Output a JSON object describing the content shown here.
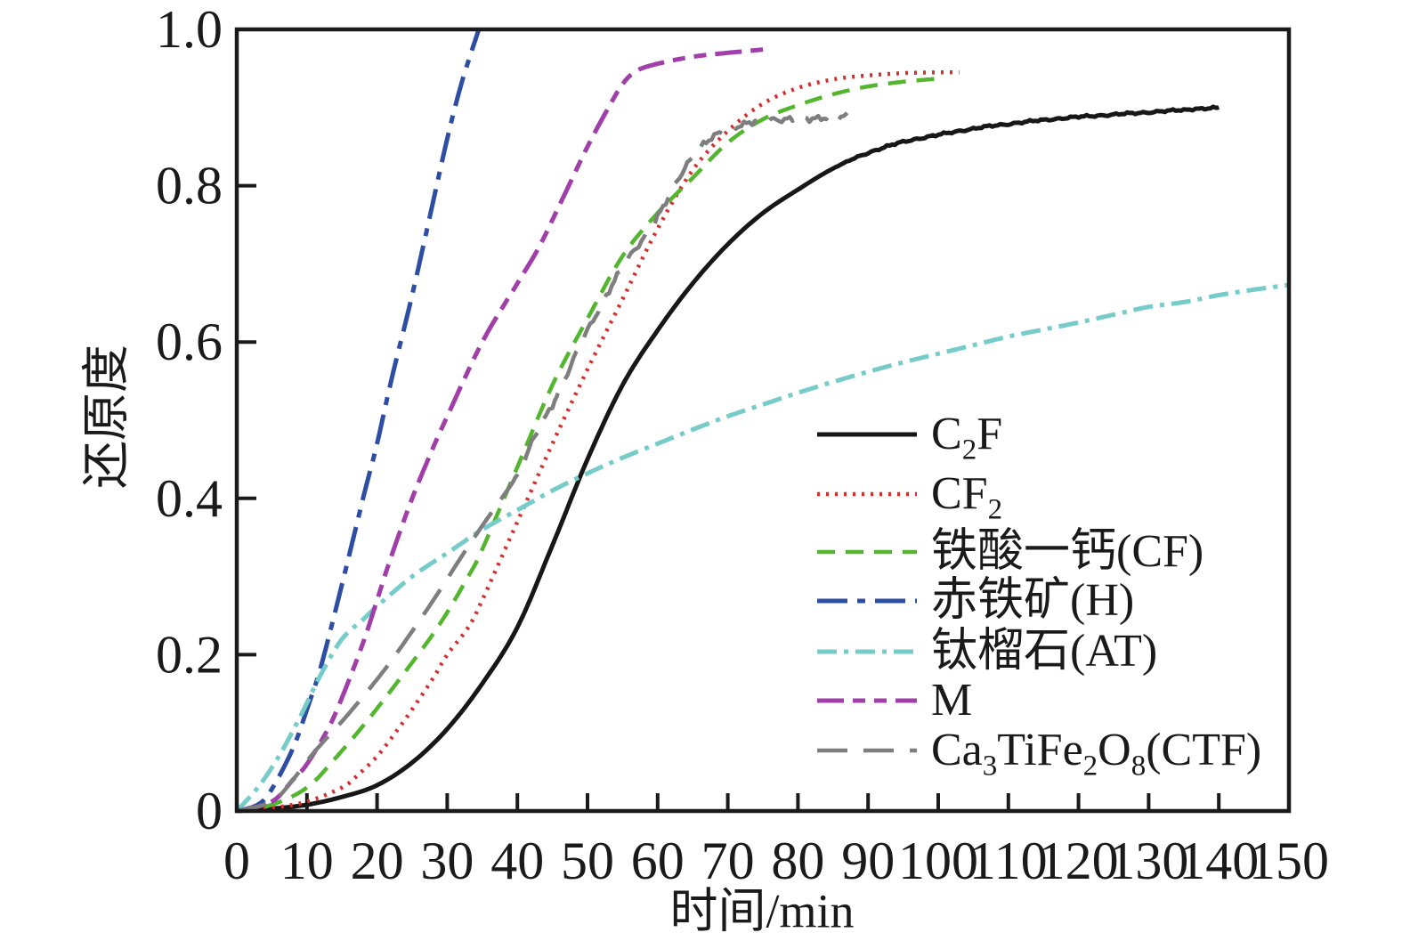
{
  "chart_data": {
    "type": "line",
    "title": "",
    "xlabel": "时间/min",
    "ylabel": "还原度",
    "xlim": [
      0,
      150
    ],
    "ylim": [
      0,
      1.0
    ],
    "x_ticks": [
      0,
      10,
      20,
      30,
      40,
      50,
      60,
      70,
      80,
      90,
      100,
      110,
      120,
      130,
      140,
      150
    ],
    "x_tick_labels": [
      "0",
      "10",
      "20",
      "30",
      "40",
      "50",
      "60",
      "70",
      "80",
      "90",
      "100",
      "110",
      "120",
      "130",
      "140",
      "150"
    ],
    "y_ticks": [
      0,
      0.2,
      0.4,
      0.6,
      0.8,
      1.0
    ],
    "y_tick_labels": [
      "0",
      "0.2",
      "0.4",
      "0.6",
      "0.8",
      "1.0"
    ],
    "grid": false,
    "legend_position": "right-middle",
    "frame_color": "#1a1a1a",
    "background_color": "#ffffff",
    "series": [
      {
        "id": "c2f",
        "label_segments": [
          {
            "t": "C"
          },
          {
            "t": "2",
            "sub": true
          },
          {
            "t": "F"
          }
        ],
        "color": "#171717",
        "dash": "",
        "width": 5,
        "noise": 0.0018,
        "noise_from": 85,
        "points": [
          [
            0,
            0
          ],
          [
            5,
            0.003
          ],
          [
            10,
            0.008
          ],
          [
            15,
            0.018
          ],
          [
            20,
            0.033
          ],
          [
            25,
            0.062
          ],
          [
            30,
            0.105
          ],
          [
            35,
            0.163
          ],
          [
            40,
            0.235
          ],
          [
            45,
            0.34
          ],
          [
            50,
            0.45
          ],
          [
            55,
            0.545
          ],
          [
            60,
            0.615
          ],
          [
            65,
            0.675
          ],
          [
            70,
            0.725
          ],
          [
            75,
            0.765
          ],
          [
            80,
            0.795
          ],
          [
            85,
            0.822
          ],
          [
            90,
            0.842
          ],
          [
            95,
            0.856
          ],
          [
            100,
            0.865
          ],
          [
            105,
            0.873
          ],
          [
            110,
            0.879
          ],
          [
            115,
            0.884
          ],
          [
            120,
            0.888
          ],
          [
            125,
            0.891
          ],
          [
            130,
            0.894
          ],
          [
            135,
            0.897
          ],
          [
            140,
            0.9
          ]
        ]
      },
      {
        "id": "cf2",
        "label_segments": [
          {
            "t": "CF"
          },
          {
            "t": "2",
            "sub": true
          }
        ],
        "color": "#d42f2f",
        "dash": "3 7",
        "width": 4.5,
        "noise": 0,
        "noise_from": 0,
        "points": [
          [
            0,
            0
          ],
          [
            5,
            0.004
          ],
          [
            10,
            0.012
          ],
          [
            15,
            0.03
          ],
          [
            17,
            0.044
          ],
          [
            20,
            0.07
          ],
          [
            23,
            0.105
          ],
          [
            25,
            0.13
          ],
          [
            28,
            0.17
          ],
          [
            30,
            0.2
          ],
          [
            33,
            0.235
          ],
          [
            35,
            0.27
          ],
          [
            40,
            0.37
          ],
          [
            45,
            0.47
          ],
          [
            50,
            0.565
          ],
          [
            55,
            0.655
          ],
          [
            60,
            0.745
          ],
          [
            65,
            0.82
          ],
          [
            70,
            0.87
          ],
          [
            75,
            0.905
          ],
          [
            80,
            0.925
          ],
          [
            85,
            0.936
          ],
          [
            90,
            0.941
          ],
          [
            95,
            0.944
          ],
          [
            100,
            0.945
          ],
          [
            103,
            0.945
          ]
        ]
      },
      {
        "id": "cf",
        "label_segments": [
          {
            "t": "铁酸一钙(CF)"
          }
        ],
        "color": "#54b62f",
        "dash": "20 12",
        "width": 4.5,
        "noise": 0,
        "noise_from": 0,
        "points": [
          [
            0,
            0
          ],
          [
            5,
            0.008
          ],
          [
            10,
            0.03
          ],
          [
            14,
            0.067
          ],
          [
            19,
            0.12
          ],
          [
            25,
            0.19
          ],
          [
            29,
            0.24
          ],
          [
            33,
            0.3
          ],
          [
            35,
            0.335
          ],
          [
            40,
            0.44
          ],
          [
            45,
            0.545
          ],
          [
            50,
            0.63
          ],
          [
            55,
            0.71
          ],
          [
            60,
            0.765
          ],
          [
            65,
            0.81
          ],
          [
            70,
            0.855
          ],
          [
            75,
            0.885
          ],
          [
            80,
            0.903
          ],
          [
            85,
            0.917
          ],
          [
            90,
            0.927
          ],
          [
            95,
            0.933
          ],
          [
            100,
            0.937
          ]
        ]
      },
      {
        "id": "h",
        "label_segments": [
          {
            "t": "赤铁矿(H)"
          }
        ],
        "color": "#2d4ea2",
        "dash": "34 11 9 11",
        "width": 5,
        "noise": 0,
        "noise_from": 0,
        "points": [
          [
            0,
            0
          ],
          [
            3,
            0.008
          ],
          [
            5,
            0.028
          ],
          [
            8,
            0.08
          ],
          [
            10,
            0.13
          ],
          [
            12,
            0.185
          ],
          [
            15,
            0.29
          ],
          [
            18,
            0.4
          ],
          [
            20,
            0.47
          ],
          [
            22,
            0.55
          ],
          [
            25,
            0.66
          ],
          [
            28,
            0.78
          ],
          [
            30,
            0.86
          ],
          [
            32,
            0.93
          ],
          [
            34.5,
            1.0
          ]
        ]
      },
      {
        "id": "at",
        "label_segments": [
          {
            "t": "钛榴石(AT)"
          }
        ],
        "color": "#76ccc9",
        "dash": "22 8 5 8",
        "width": 5,
        "noise": 0,
        "noise_from": 0,
        "points": [
          [
            0,
            0
          ],
          [
            3,
            0.03
          ],
          [
            6,
            0.07
          ],
          [
            9,
            0.12
          ],
          [
            12,
            0.175
          ],
          [
            15,
            0.22
          ],
          [
            18,
            0.245
          ],
          [
            20,
            0.262
          ],
          [
            25,
            0.3
          ],
          [
            30,
            0.33
          ],
          [
            35,
            0.36
          ],
          [
            40,
            0.385
          ],
          [
            45,
            0.41
          ],
          [
            50,
            0.432
          ],
          [
            55,
            0.452
          ],
          [
            60,
            0.47
          ],
          [
            65,
            0.488
          ],
          [
            70,
            0.505
          ],
          [
            75,
            0.52
          ],
          [
            80,
            0.535
          ],
          [
            85,
            0.549
          ],
          [
            90,
            0.562
          ],
          [
            95,
            0.574
          ],
          [
            100,
            0.585
          ],
          [
            105,
            0.596
          ],
          [
            110,
            0.607
          ],
          [
            115,
            0.616
          ],
          [
            120,
            0.625
          ],
          [
            125,
            0.635
          ],
          [
            130,
            0.645
          ],
          [
            135,
            0.651
          ],
          [
            140,
            0.66
          ],
          [
            145,
            0.667
          ],
          [
            150,
            0.673
          ]
        ]
      },
      {
        "id": "m",
        "label_segments": [
          {
            "t": "M"
          }
        ],
        "color": "#a13fa8",
        "dash": "30 10 14 10 14 10",
        "width": 5,
        "noise": 0,
        "noise_from": 0,
        "points": [
          [
            0,
            0
          ],
          [
            5,
            0.012
          ],
          [
            8,
            0.04
          ],
          [
            10,
            0.06
          ],
          [
            13,
            0.105
          ],
          [
            15,
            0.145
          ],
          [
            18,
            0.215
          ],
          [
            20,
            0.27
          ],
          [
            22,
            0.325
          ],
          [
            25,
            0.4
          ],
          [
            28,
            0.465
          ],
          [
            30,
            0.505
          ],
          [
            35,
            0.6
          ],
          [
            40,
            0.675
          ],
          [
            43,
            0.72
          ],
          [
            46,
            0.775
          ],
          [
            50,
            0.85
          ],
          [
            53,
            0.9
          ],
          [
            55,
            0.93
          ],
          [
            57,
            0.947
          ],
          [
            60,
            0.956
          ],
          [
            65,
            0.965
          ],
          [
            70,
            0.97
          ],
          [
            76,
            0.975
          ]
        ]
      },
      {
        "id": "ctf",
        "label_segments": [
          {
            "t": "Ca"
          },
          {
            "t": "3",
            "sub": true
          },
          {
            "t": "TiFe"
          },
          {
            "t": "2",
            "sub": true
          },
          {
            "t": "O"
          },
          {
            "t": "8",
            "sub": true
          },
          {
            "t": "(CTF)"
          }
        ],
        "color": "#7e7e7e",
        "dash": "34 18",
        "width": 4.5,
        "noise": 0.005,
        "noise_from": 38,
        "points": [
          [
            0,
            0
          ],
          [
            5,
            0.012
          ],
          [
            8,
            0.04
          ],
          [
            11,
            0.075
          ],
          [
            16,
            0.125
          ],
          [
            21,
            0.18
          ],
          [
            25,
            0.23
          ],
          [
            29,
            0.283
          ],
          [
            32,
            0.325
          ],
          [
            35,
            0.365
          ],
          [
            40,
            0.43
          ],
          [
            42,
            0.47
          ],
          [
            45,
            0.52
          ],
          [
            50,
            0.615
          ],
          [
            55,
            0.695
          ],
          [
            60,
            0.76
          ],
          [
            65,
            0.838
          ],
          [
            70,
            0.872
          ],
          [
            75,
            0.883
          ],
          [
            80,
            0.886
          ],
          [
            85,
            0.886
          ],
          [
            87,
            0.89
          ]
        ]
      }
    ]
  }
}
